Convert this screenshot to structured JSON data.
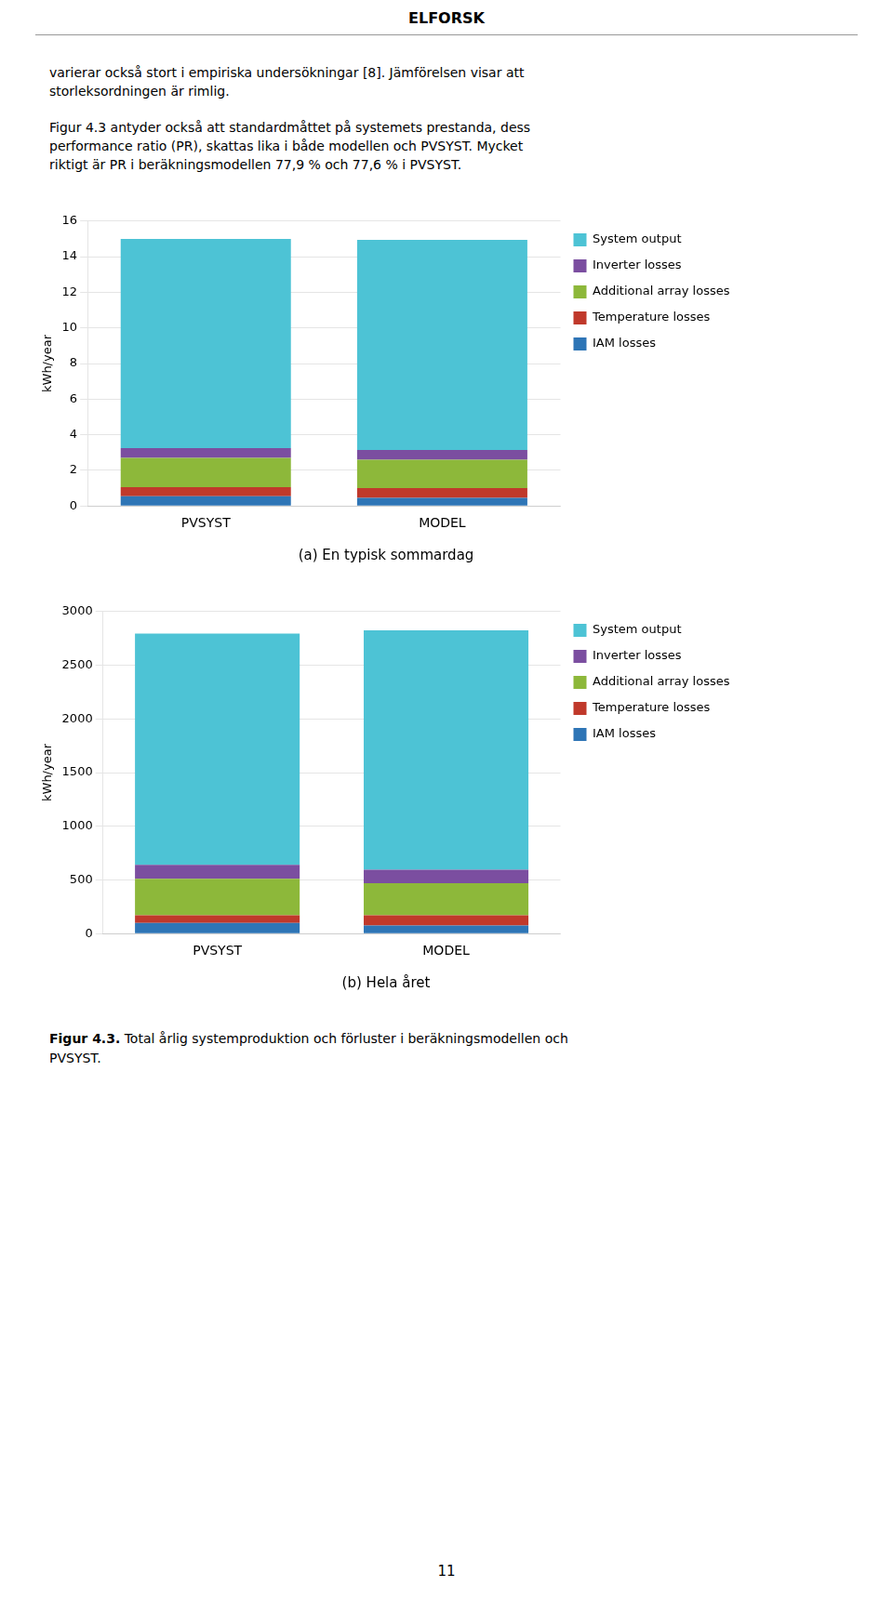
{
  "header": "ELFORSK",
  "paragraphs": [
    "varierar också stort i empiriska undersökningar [8]. Jämförelsen visar att\nstorleksordningen är rimlig.",
    "Figur 4.3 antyder också att standardmåttet på systemets prestanda, dess\nperformance ratio (PR), skattas lika i både modellen och PVSYST. Mycket\nriktigt är PR i beräkningsmodellen 77,9 % och 77,6 % i PVSYST."
  ],
  "figure_caption": {
    "bold": "Figur 4.3.",
    "text": " Total årlig systemproduktion och förluster i beräkningsmodellen och\nPVSYST."
  },
  "page_number": "11",
  "chart_data": [
    {
      "type": "bar",
      "title": "(a) En typisk sommardag",
      "categories": [
        "PVSYST",
        "MODEL"
      ],
      "ylabel": "kWh/year",
      "ylim": [
        0,
        16
      ],
      "yticks": [
        0,
        2,
        4,
        6,
        8,
        10,
        12,
        14,
        16
      ],
      "grid": true,
      "stacked": true,
      "legend": "right",
      "series": [
        {
          "name": "IAM losses",
          "color": "#2E75B6",
          "values": [
            0.55,
            0.45
          ]
        },
        {
          "name": "Temperature losses",
          "color": "#C0392B",
          "values": [
            0.5,
            0.55
          ]
        },
        {
          "name": "Additional array losses",
          "color": "#8DB83A",
          "values": [
            1.65,
            1.6
          ]
        },
        {
          "name": "Inverter losses",
          "color": "#7B4EA0",
          "values": [
            0.55,
            0.55
          ]
        },
        {
          "name": "System output",
          "color": "#4DC3D5",
          "values": [
            11.75,
            11.8
          ]
        }
      ]
    },
    {
      "type": "bar",
      "title": "(b) Hela året",
      "categories": [
        "PVSYST",
        "MODEL"
      ],
      "ylabel": "kWh/year",
      "ylim": [
        0,
        3000
      ],
      "yticks": [
        0,
        500,
        1000,
        1500,
        2000,
        2500,
        3000
      ],
      "grid": true,
      "stacked": true,
      "legend": "right",
      "series": [
        {
          "name": "IAM losses",
          "color": "#2E75B6",
          "values": [
            100,
            75
          ]
        },
        {
          "name": "Temperature losses",
          "color": "#C0392B",
          "values": [
            70,
            95
          ]
        },
        {
          "name": "Additional array losses",
          "color": "#8DB83A",
          "values": [
            340,
            300
          ]
        },
        {
          "name": "Inverter losses",
          "color": "#7B4EA0",
          "values": [
            130,
            125
          ]
        },
        {
          "name": "System output",
          "color": "#4DC3D5",
          "values": [
            2155,
            2230
          ]
        }
      ]
    }
  ]
}
